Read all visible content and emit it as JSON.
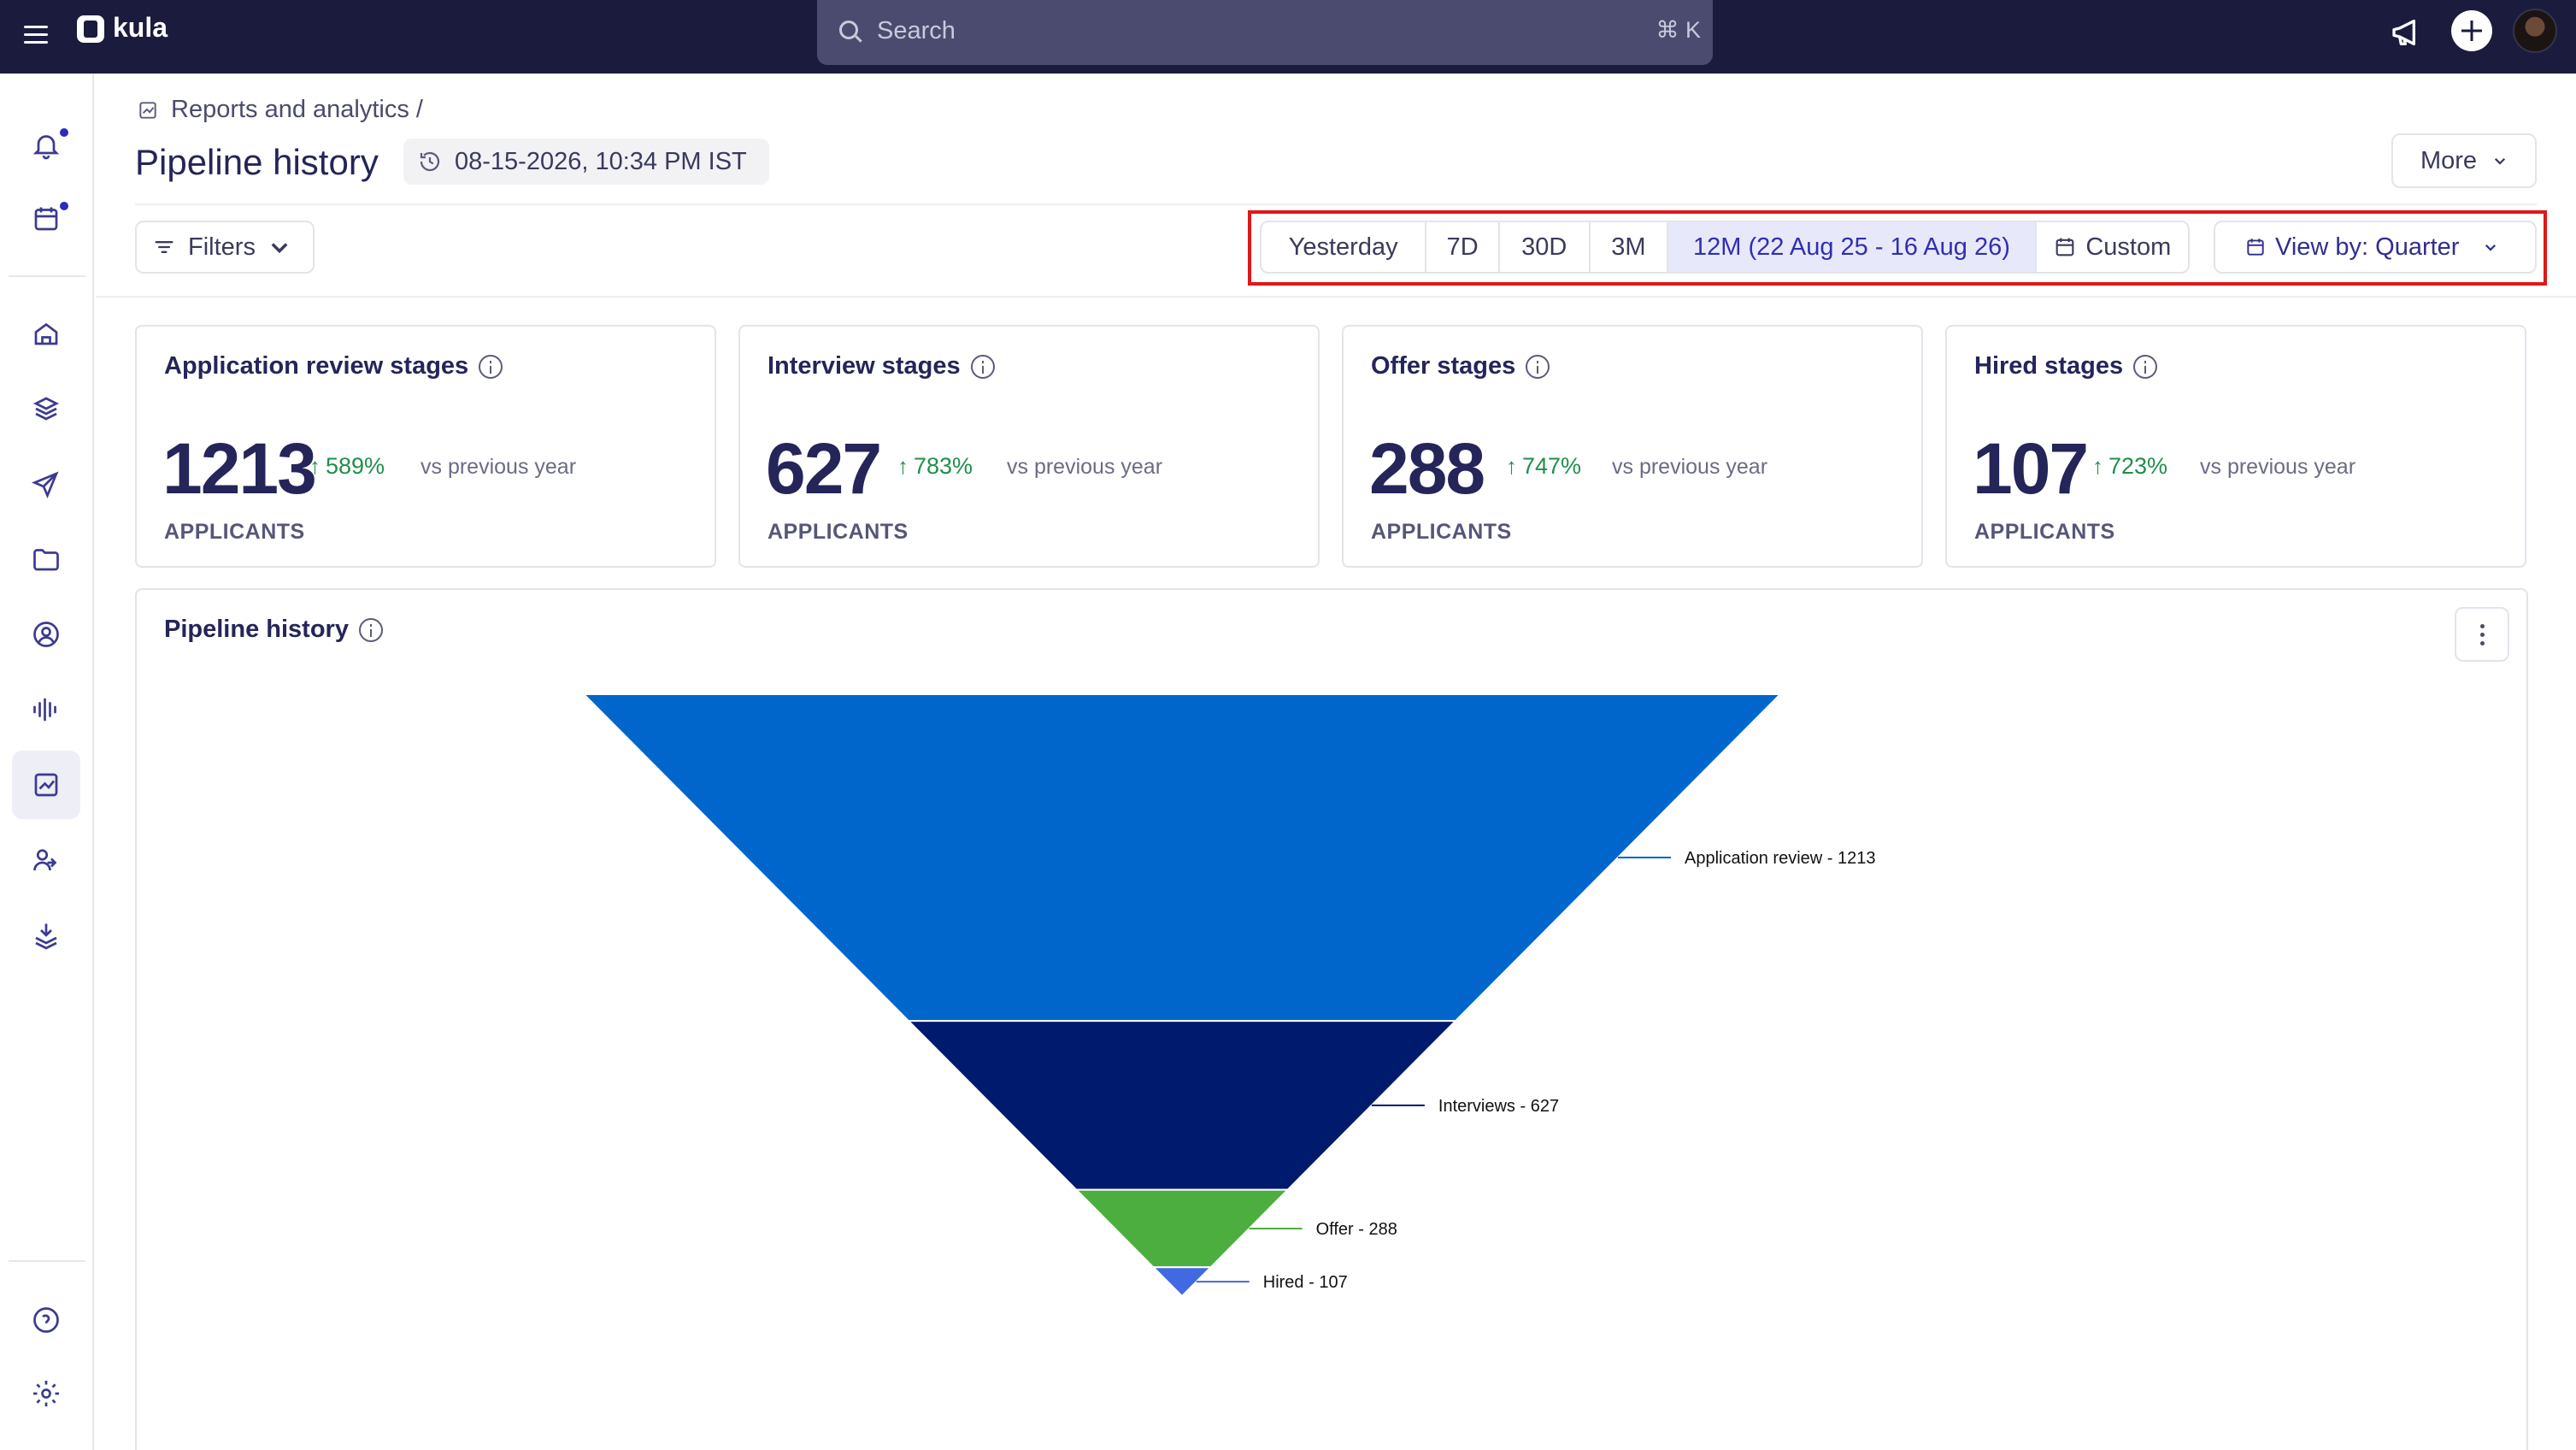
{
  "app": {
    "name": "kula"
  },
  "search": {
    "placeholder": "Search",
    "shortcut": "⌘ K"
  },
  "breadcrumb": {
    "section": "Reports and analytics /"
  },
  "page": {
    "title": "Pipeline history",
    "timestamp": "08-15-2026, 10:34 PM IST",
    "more_label": "More"
  },
  "filters": {
    "label": "Filters"
  },
  "ranges": [
    {
      "label": "Yesterday",
      "selected": false
    },
    {
      "label": "7D",
      "selected": false
    },
    {
      "label": "30D",
      "selected": false
    },
    {
      "label": "3M",
      "selected": false
    },
    {
      "label": "12M (22 Aug 25 - 16 Aug 26)",
      "selected": true
    },
    {
      "label": "Custom",
      "selected": false
    }
  ],
  "view_by": {
    "label": "View by: Quarter"
  },
  "sidebar": {
    "items": [
      {
        "icon": "bell-icon",
        "dot": true
      },
      {
        "icon": "calendar-icon",
        "dot": true
      },
      {
        "icon": "home-icon"
      },
      {
        "icon": "layers-icon"
      },
      {
        "icon": "send-icon"
      },
      {
        "icon": "folder-icon"
      },
      {
        "icon": "user-circle-icon"
      },
      {
        "icon": "audio-wave-icon"
      },
      {
        "icon": "reports-icon",
        "active": true
      },
      {
        "icon": "users-icon"
      },
      {
        "icon": "download-stack-icon"
      },
      {
        "icon": "help-icon"
      },
      {
        "icon": "settings-icon"
      }
    ]
  },
  "cards": [
    {
      "title": "Application review stages",
      "value": "1213",
      "delta": "589%",
      "comparison": "vs previous year",
      "unit": "APPLICANTS"
    },
    {
      "title": "Interview stages",
      "value": "627",
      "delta": "783%",
      "comparison": "vs previous year",
      "unit": "APPLICANTS"
    },
    {
      "title": "Offer stages",
      "value": "288",
      "delta": "747%",
      "comparison": "vs previous year",
      "unit": "APPLICANTS"
    },
    {
      "title": "Hired stages",
      "value": "107",
      "delta": "723%",
      "comparison": "vs previous year",
      "unit": "APPLICANTS"
    }
  ],
  "panel": {
    "title": "Pipeline history"
  },
  "chart_data": {
    "type": "funnel",
    "title": "Pipeline history",
    "stages": [
      {
        "name": "Application review",
        "value": 1213,
        "label": "Application review - 1213",
        "color": "#0066cc"
      },
      {
        "name": "Interviews",
        "value": 627,
        "label": "Interviews - 627",
        "color": "#001a6e"
      },
      {
        "name": "Offer",
        "value": 288,
        "label": "Offer - 288",
        "color": "#4cae3f"
      },
      {
        "name": "Hired",
        "value": 107,
        "label": "Hired - 107",
        "color": "#4169e1"
      }
    ]
  },
  "colors": {
    "topbar": "#1b1b3d",
    "accent": "#2f2fb0",
    "positive": "#1f8f4a",
    "highlight_border": "#e01717"
  }
}
